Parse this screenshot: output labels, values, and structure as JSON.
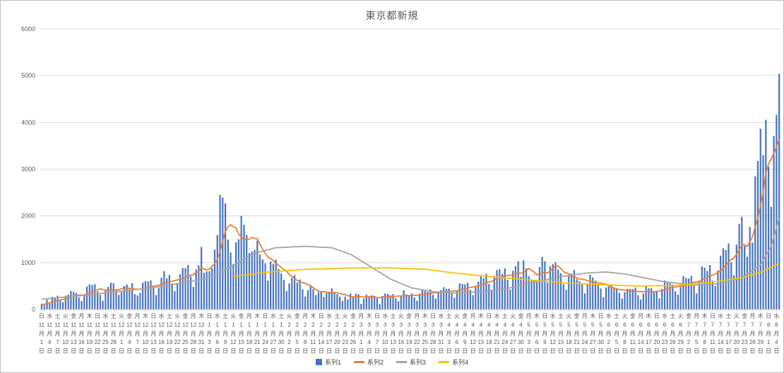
{
  "window": {
    "background": "#ffffff",
    "border_color": "#bdbdbd"
  },
  "chart": {
    "title": "東京都新規",
    "legend": [
      {
        "label": "系列1",
        "color": "#4472C4",
        "marker": "square"
      },
      {
        "label": "系列2",
        "color": "#ED7D31",
        "marker": "line"
      },
      {
        "label": "系列3",
        "color": "#A5A5A5",
        "marker": "line"
      },
      {
        "label": "系列4",
        "color": "#FFC000",
        "marker": "line"
      }
    ]
  },
  "chart_data": {
    "type": "combo",
    "title": "東京都新規",
    "x_unit": "day",
    "tick_interval_days": 3,
    "ylim": [
      0,
      6000
    ],
    "y_tick_step": 1000,
    "y_tick_labels": [
      "0",
      "1000",
      "2000",
      "3000",
      "4000",
      "5000",
      "6000"
    ],
    "grid": true,
    "legend_position": "bottom",
    "x_ticks": [
      [
        "日",
        11,
        1
      ],
      [
        "水",
        11,
        4
      ],
      [
        "土",
        11,
        7
      ],
      [
        "火",
        11,
        10
      ],
      [
        "金",
        11,
        13
      ],
      [
        "月",
        11,
        16
      ],
      [
        "木",
        11,
        19
      ],
      [
        "日",
        11,
        22
      ],
      [
        "水",
        11,
        25
      ],
      [
        "土",
        11,
        28
      ],
      [
        "火",
        12,
        1
      ],
      [
        "金",
        12,
        4
      ],
      [
        "月",
        12,
        7
      ],
      [
        "木",
        12,
        10
      ],
      [
        "日",
        12,
        13
      ],
      [
        "水",
        12,
        16
      ],
      [
        "土",
        12,
        19
      ],
      [
        "火",
        12,
        22
      ],
      [
        "金",
        12,
        25
      ],
      [
        "月",
        12,
        28
      ],
      [
        "木",
        12,
        31
      ],
      [
        "日",
        1,
        3
      ],
      [
        "水",
        1,
        6
      ],
      [
        "土",
        1,
        9
      ],
      [
        "火",
        1,
        12
      ],
      [
        "金",
        1,
        15
      ],
      [
        "月",
        1,
        18
      ],
      [
        "木",
        1,
        21
      ],
      [
        "日",
        1,
        24
      ],
      [
        "水",
        1,
        27
      ],
      [
        "土",
        1,
        30
      ],
      [
        "火",
        2,
        2
      ],
      [
        "金",
        2,
        5
      ],
      [
        "月",
        2,
        8
      ],
      [
        "木",
        2,
        11
      ],
      [
        "日",
        2,
        14
      ],
      [
        "水",
        2,
        17
      ],
      [
        "土",
        2,
        20
      ],
      [
        "火",
        2,
        23
      ],
      [
        "金",
        2,
        26
      ],
      [
        "月",
        3,
        1
      ],
      [
        "木",
        3,
        4
      ],
      [
        "日",
        3,
        7
      ],
      [
        "水",
        3,
        10
      ],
      [
        "土",
        3,
        13
      ],
      [
        "火",
        3,
        16
      ],
      [
        "金",
        3,
        19
      ],
      [
        "月",
        3,
        22
      ],
      [
        "木",
        3,
        25
      ],
      [
        "日",
        3,
        28
      ],
      [
        "水",
        3,
        31
      ],
      [
        "土",
        4,
        3
      ],
      [
        "火",
        4,
        6
      ],
      [
        "金",
        4,
        9
      ],
      [
        "月",
        4,
        12
      ],
      [
        "木",
        4,
        15
      ],
      [
        "日",
        4,
        18
      ],
      [
        "水",
        4,
        21
      ],
      [
        "土",
        4,
        24
      ],
      [
        "火",
        4,
        27
      ],
      [
        "金",
        4,
        30
      ],
      [
        "月",
        5,
        3
      ],
      [
        "木",
        5,
        6
      ],
      [
        "日",
        5,
        9
      ],
      [
        "水",
        5,
        12
      ],
      [
        "土",
        5,
        15
      ],
      [
        "火",
        5,
        18
      ],
      [
        "金",
        5,
        21
      ],
      [
        "月",
        5,
        24
      ],
      [
        "木",
        5,
        27
      ],
      [
        "日",
        5,
        30
      ],
      [
        "水",
        6,
        2
      ],
      [
        "土",
        6,
        5
      ],
      [
        "火",
        6,
        8
      ],
      [
        "金",
        6,
        11
      ],
      [
        "月",
        6,
        14
      ],
      [
        "木",
        6,
        17
      ],
      [
        "日",
        6,
        20
      ],
      [
        "水",
        6,
        23
      ],
      [
        "土",
        6,
        26
      ],
      [
        "火",
        6,
        29
      ],
      [
        "金",
        7,
        2
      ],
      [
        "月",
        7,
        5
      ],
      [
        "木",
        7,
        8
      ],
      [
        "日",
        7,
        11
      ],
      [
        "水",
        7,
        14
      ],
      [
        "土",
        7,
        17
      ],
      [
        "火",
        7,
        20
      ],
      [
        "金",
        7,
        23
      ],
      [
        "月",
        7,
        26
      ],
      [
        "木",
        7,
        29
      ],
      [
        "日",
        8,
        1
      ],
      [
        "水",
        8,
        4
      ]
    ],
    "series": [
      {
        "name": "系列1",
        "type": "bar",
        "color": "#4472C4",
        "values": [
          116,
          87,
          209,
          122,
          269,
          242,
          294,
          189,
          157,
          293,
          317,
          393,
          374,
          352,
          255,
          180,
          298,
          493,
          534,
          522,
          539,
          391,
          314,
          186,
          401,
          481,
          570,
          561,
          418,
          311,
          372,
          500,
          533,
          449,
          561,
          327,
          299,
          352,
          572,
          602,
          595,
          621,
          480,
          305,
          460,
          678,
          821,
          664,
          736,
          556,
          392,
          563,
          748,
          888,
          884,
          949,
          708,
          481,
          856,
          944,
          1337,
          783,
          814,
          816,
          884,
          1278,
          1591,
          2447,
          2392,
          2268,
          1494,
          1219,
          970,
          1433,
          1502,
          2001,
          1809,
          1592,
          1204,
          1240,
          1274,
          1471,
          1175,
          1070,
          986,
          618,
          1026,
          973,
          1064,
          868,
          769,
          633,
          393,
          556,
          676,
          734,
          577,
          639,
          429,
          276,
          412,
          491,
          434,
          307,
          369,
          371,
          266,
          350,
          378,
          445,
          353,
          327,
          272,
          178,
          275,
          213,
          340,
          270,
          337,
          329,
          121,
          232,
          316,
          279,
          301,
          293,
          237,
          116,
          290,
          340,
          335,
          304,
          330,
          239,
          175,
          300,
          409,
          323,
          303,
          342,
          256,
          187,
          337,
          420,
          394,
          376,
          430,
          313,
          234,
          364,
          414,
          475,
          440,
          446,
          355,
          249,
          399,
          555,
          545,
          537,
          570,
          421,
          306,
          510,
          591,
          729,
          667,
          759,
          543,
          405,
          711,
          843,
          861,
          759,
          876,
          635,
          425,
          828,
          925,
          1027,
          698,
          1050,
          879,
          708,
          609,
          621,
          591,
          907,
          1121,
          1032,
          573,
          925,
          969,
          1010,
          854,
          772,
          542,
          419,
          732,
          766,
          843,
          649,
          602,
          535,
          340,
          542,
          743,
          684,
          614,
          539,
          448,
          260,
          471,
          487,
          508,
          472,
          436,
          351,
          235,
          369,
          440,
          439,
          435,
          467,
          304,
          209,
          337,
          501,
          452,
          453,
          388,
          376,
          236,
          435,
          619,
          570,
          562,
          534,
          386,
          317,
          476,
          714,
          673,
          660,
          716,
          518,
          342,
          593,
          920,
          896,
          822,
          950,
          614,
          502,
          830,
          1149,
          1308,
          1271,
          1410,
          1008,
          727,
          1387,
          1832,
          1979,
          1359,
          1128,
          1763,
          1429,
          2848,
          3177,
          3865,
          3300,
          4058,
          3058,
          2195,
          3709,
          4166,
          5042
        ]
      },
      {
        "name": "系列2",
        "type": "line",
        "color": "#ED7D31",
        "derivation": "7-day moving average of 系列1"
      },
      {
        "name": "系列3",
        "type": "line",
        "color": "#A5A5A5",
        "points_day_value": [
          [
            0,
            220
          ],
          [
            14,
            290
          ],
          [
            30,
            390
          ],
          [
            45,
            490
          ],
          [
            61,
            650
          ],
          [
            70,
            880
          ],
          [
            80,
            1200
          ],
          [
            88,
            1320
          ],
          [
            99,
            1350
          ],
          [
            109,
            1320
          ],
          [
            116,
            1180
          ],
          [
            124,
            900
          ],
          [
            131,
            650
          ],
          [
            139,
            460
          ],
          [
            147,
            380
          ],
          [
            155,
            350
          ],
          [
            165,
            380
          ],
          [
            175,
            450
          ],
          [
            185,
            580
          ],
          [
            195,
            700
          ],
          [
            205,
            780
          ],
          [
            212,
            800
          ],
          [
            219,
            760
          ],
          [
            226,
            680
          ],
          [
            233,
            600
          ],
          [
            242,
            540
          ],
          [
            249,
            520
          ],
          [
            256,
            560
          ],
          [
            263,
            680
          ],
          [
            270,
            950
          ],
          [
            274,
            1350
          ],
          [
            277,
            1950
          ]
        ]
      },
      {
        "name": "系列4",
        "type": "line",
        "color": "#FFC000",
        "points_day_value": [
          [
            72,
            700
          ],
          [
            85,
            800
          ],
          [
            100,
            860
          ],
          [
            115,
            885
          ],
          [
            130,
            890
          ],
          [
            144,
            860
          ],
          [
            155,
            780
          ],
          [
            165,
            720
          ],
          [
            181,
            640
          ],
          [
            196,
            570
          ],
          [
            210,
            530
          ],
          [
            224,
            500
          ],
          [
            237,
            510
          ],
          [
            250,
            570
          ],
          [
            264,
            690
          ],
          [
            271,
            820
          ],
          [
            277,
            990
          ]
        ]
      }
    ]
  }
}
